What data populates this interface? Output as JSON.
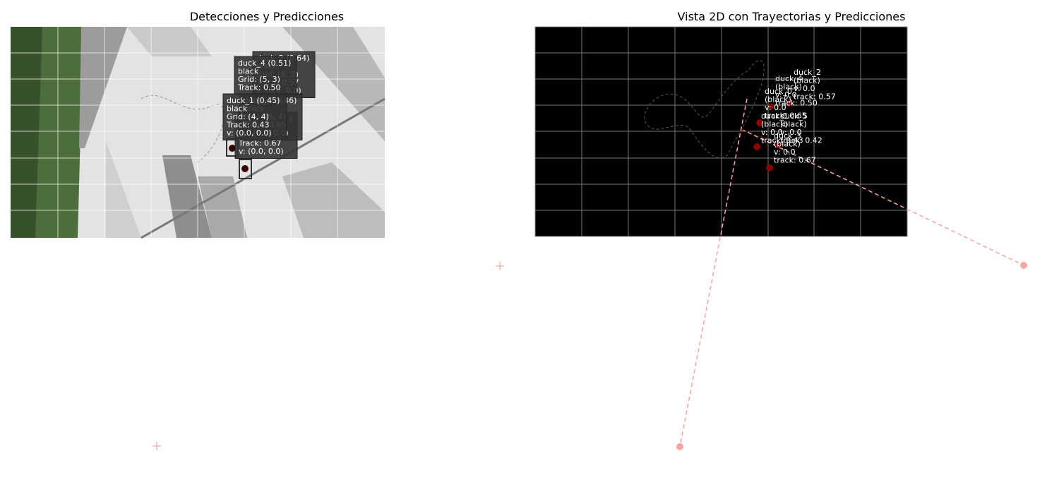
{
  "left_panel": {
    "title": "Detecciones y Predicciones",
    "labels": [
      {
        "lines": [
          "duck_2 (0.64)",
          "black",
          "Grid: (6, 2)",
          "Track: 0.57",
          "v: (0.0, 0.0)"
        ]
      },
      {
        "lines": [
          "duck_3 (0.71)",
          "black",
          "Grid: (5, 5)",
          "Track: 0.67",
          "v: (0.0, 0.0)"
        ]
      },
      {
        "lines": [
          "duck_0 (0.46)",
          "black",
          "Grid: (5, 4)",
          "Track: 0.65",
          "v: (0.0, 0.0)"
        ]
      },
      {
        "lines": [
          "duck_4 (0.51)",
          "black",
          "Grid: (5, 3)",
          "Track: 0.50"
        ]
      },
      {
        "lines": [
          "duck_1 (0.45)",
          "black",
          "Grid: (4, 4)",
          "Track: 0.43",
          "v: (0.0, 0.0)"
        ]
      }
    ]
  },
  "right_panel": {
    "title": "Vista 2D con Trayectorias y Predicciones",
    "labels": [
      {
        "lines": [
          "duck_2",
          "(black)",
          "v: 0.0",
          "track: 0.57"
        ]
      },
      {
        "lines": [
          "duck_4",
          "(black)",
          "v: 0.0",
          "track: 0.50"
        ]
      },
      {
        "lines": [
          "duck_0",
          "(black)",
          "v: 0.0",
          "track: 0.65"
        ]
      },
      {
        "lines": [
          "duck_5",
          "(black)",
          "v: 0.0",
          "track: 0.42"
        ]
      },
      {
        "lines": [
          "duck_1",
          "(black)",
          "v: 0.0",
          "track: 0.43"
        ]
      },
      {
        "lines": [
          "duck_3",
          "(black)",
          "v: 0.0",
          "track: 0.67"
        ]
      }
    ]
  }
}
